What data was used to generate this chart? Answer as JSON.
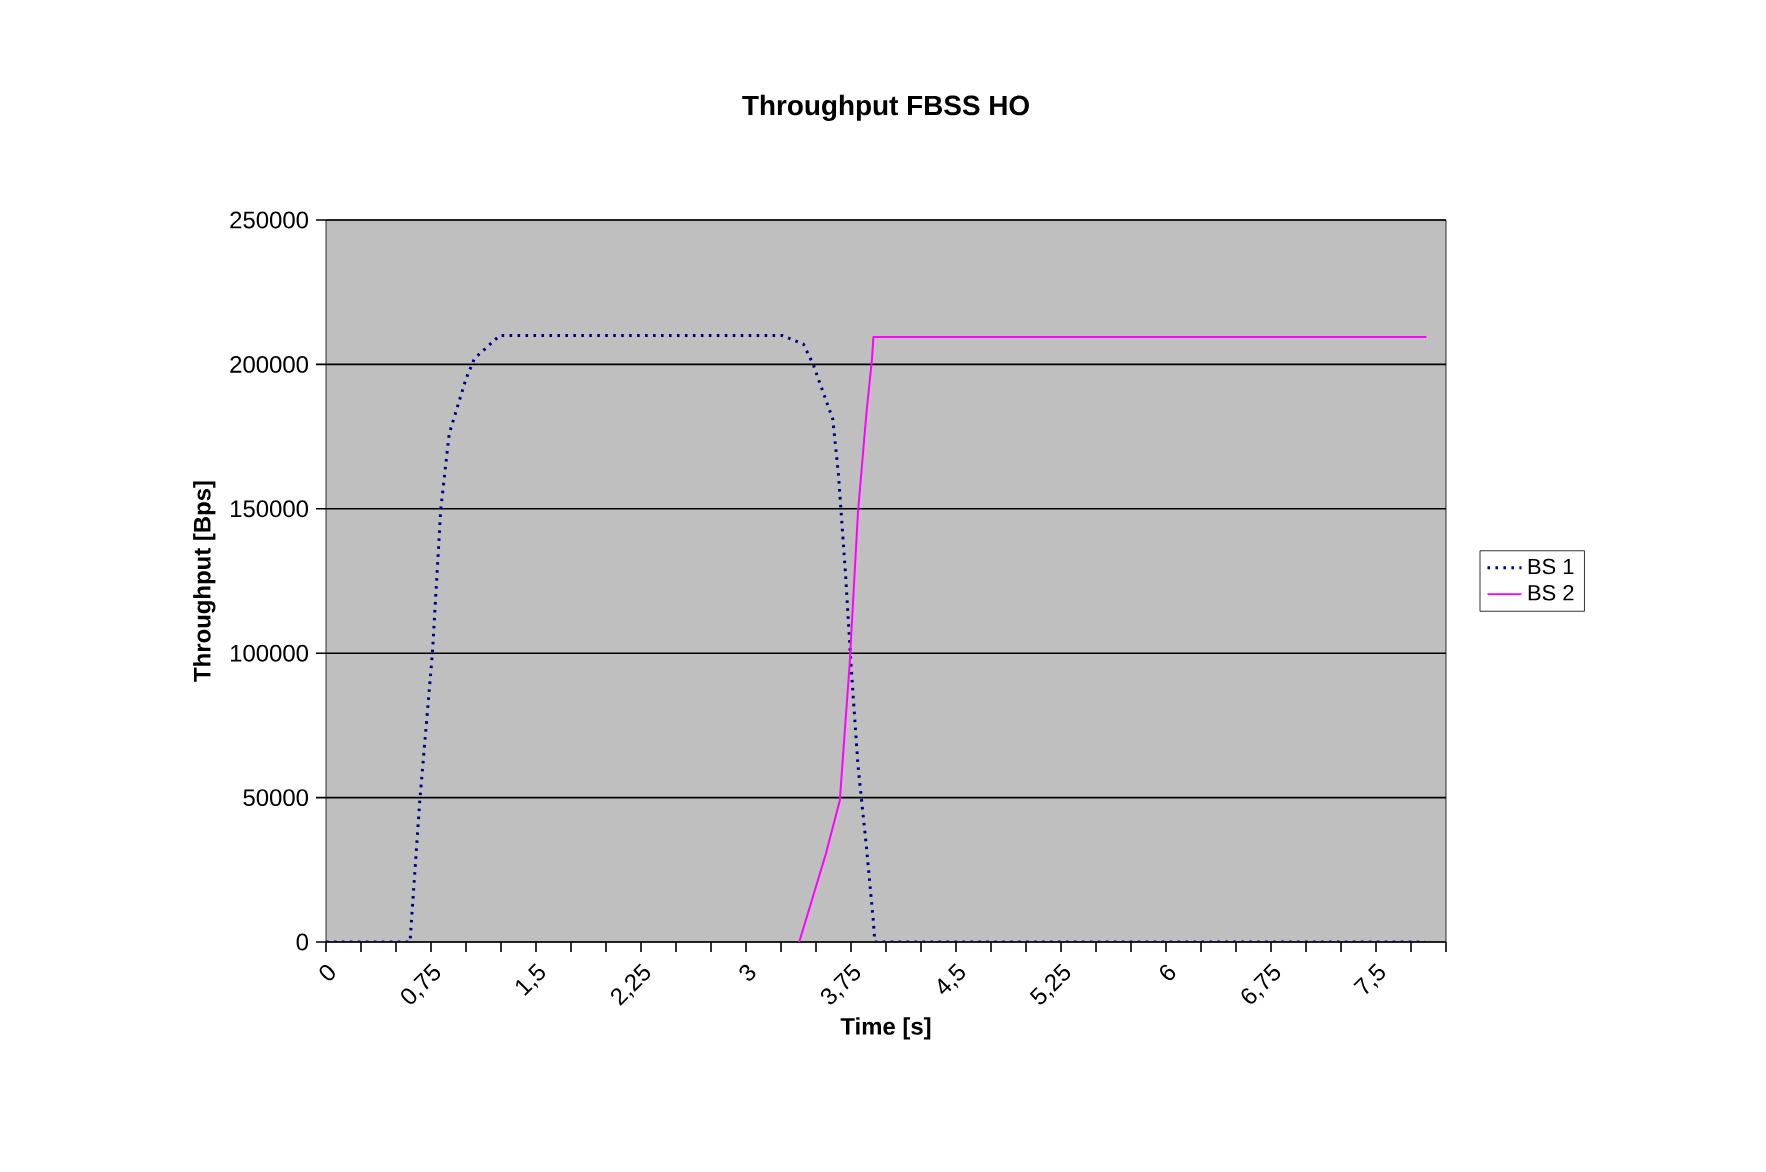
{
  "chart_data": {
    "type": "line",
    "title": "Throughput FBSS HO",
    "xlabel": "Time [s]",
    "ylabel": "Throughput [Bps]",
    "xlim": [
      0,
      8
    ],
    "ylim": [
      0,
      250000
    ],
    "xticks": [
      0,
      {
        "value": 0.25,
        "label": null
      },
      {
        "value": 0.5,
        "label": null
      },
      {
        "value": 0.75,
        "label": "0,75"
      },
      {
        "value": 1,
        "label": null
      },
      {
        "value": 1.25,
        "label": null
      },
      {
        "value": 1.5,
        "label": "1,5"
      },
      {
        "value": 1.75,
        "label": null
      },
      {
        "value": 2,
        "label": null
      },
      {
        "value": 2.25,
        "label": "2,25"
      },
      {
        "value": 2.5,
        "label": null
      },
      {
        "value": 2.75,
        "label": null
      },
      3,
      {
        "value": 3.25,
        "label": null
      },
      {
        "value": 3.5,
        "label": null
      },
      {
        "value": 3.75,
        "label": "3,75"
      },
      {
        "value": 4,
        "label": null
      },
      {
        "value": 4.25,
        "label": null
      },
      {
        "value": 4.5,
        "label": "4,5"
      },
      {
        "value": 4.75,
        "label": null
      },
      {
        "value": 5,
        "label": null
      },
      {
        "value": 5.25,
        "label": "5,25"
      },
      {
        "value": 5.5,
        "label": null
      },
      {
        "value": 5.75,
        "label": null
      },
      6,
      {
        "value": 6.25,
        "label": null
      },
      {
        "value": 6.5,
        "label": null
      },
      {
        "value": 6.75,
        "label": "6,75"
      },
      {
        "value": 7,
        "label": null
      },
      {
        "value": 7.25,
        "label": null
      },
      {
        "value": 7.5,
        "label": "7,5"
      },
      {
        "value": 7.75,
        "label": null
      },
      {
        "value": 8,
        "label": null
      }
    ],
    "yticks": [
      0,
      50000,
      100000,
      150000,
      200000,
      250000
    ],
    "grid": "y",
    "legend": "right",
    "series": [
      {
        "name": "BS 1",
        "color": "#000080",
        "line_style": "dotted",
        "x": [
          0,
          0.6,
          0.67,
          0.76,
          0.82,
          0.88,
          1.0,
          1.06,
          1.24,
          3.26,
          3.41,
          3.48,
          3.62,
          3.66,
          3.71,
          3.75,
          3.8,
          3.86,
          3.91,
          3.92,
          7.85
        ],
        "values": [
          0,
          0,
          49000,
          100000,
          150000,
          176000,
          195000,
          202000,
          210000,
          210000,
          207000,
          200000,
          181000,
          162000,
          128000,
          96000,
          61000,
          33000,
          7000,
          0,
          0
        ]
      },
      {
        "name": "BS 2",
        "color": "#ff00ff",
        "line_style": "solid",
        "x": [
          3.38,
          3.57,
          3.67,
          3.74,
          3.8,
          3.86,
          3.9,
          3.91,
          7.86
        ],
        "values": [
          0,
          30500,
          49000,
          96000,
          149000,
          183000,
          202000,
          209500,
          209500
        ]
      }
    ]
  }
}
